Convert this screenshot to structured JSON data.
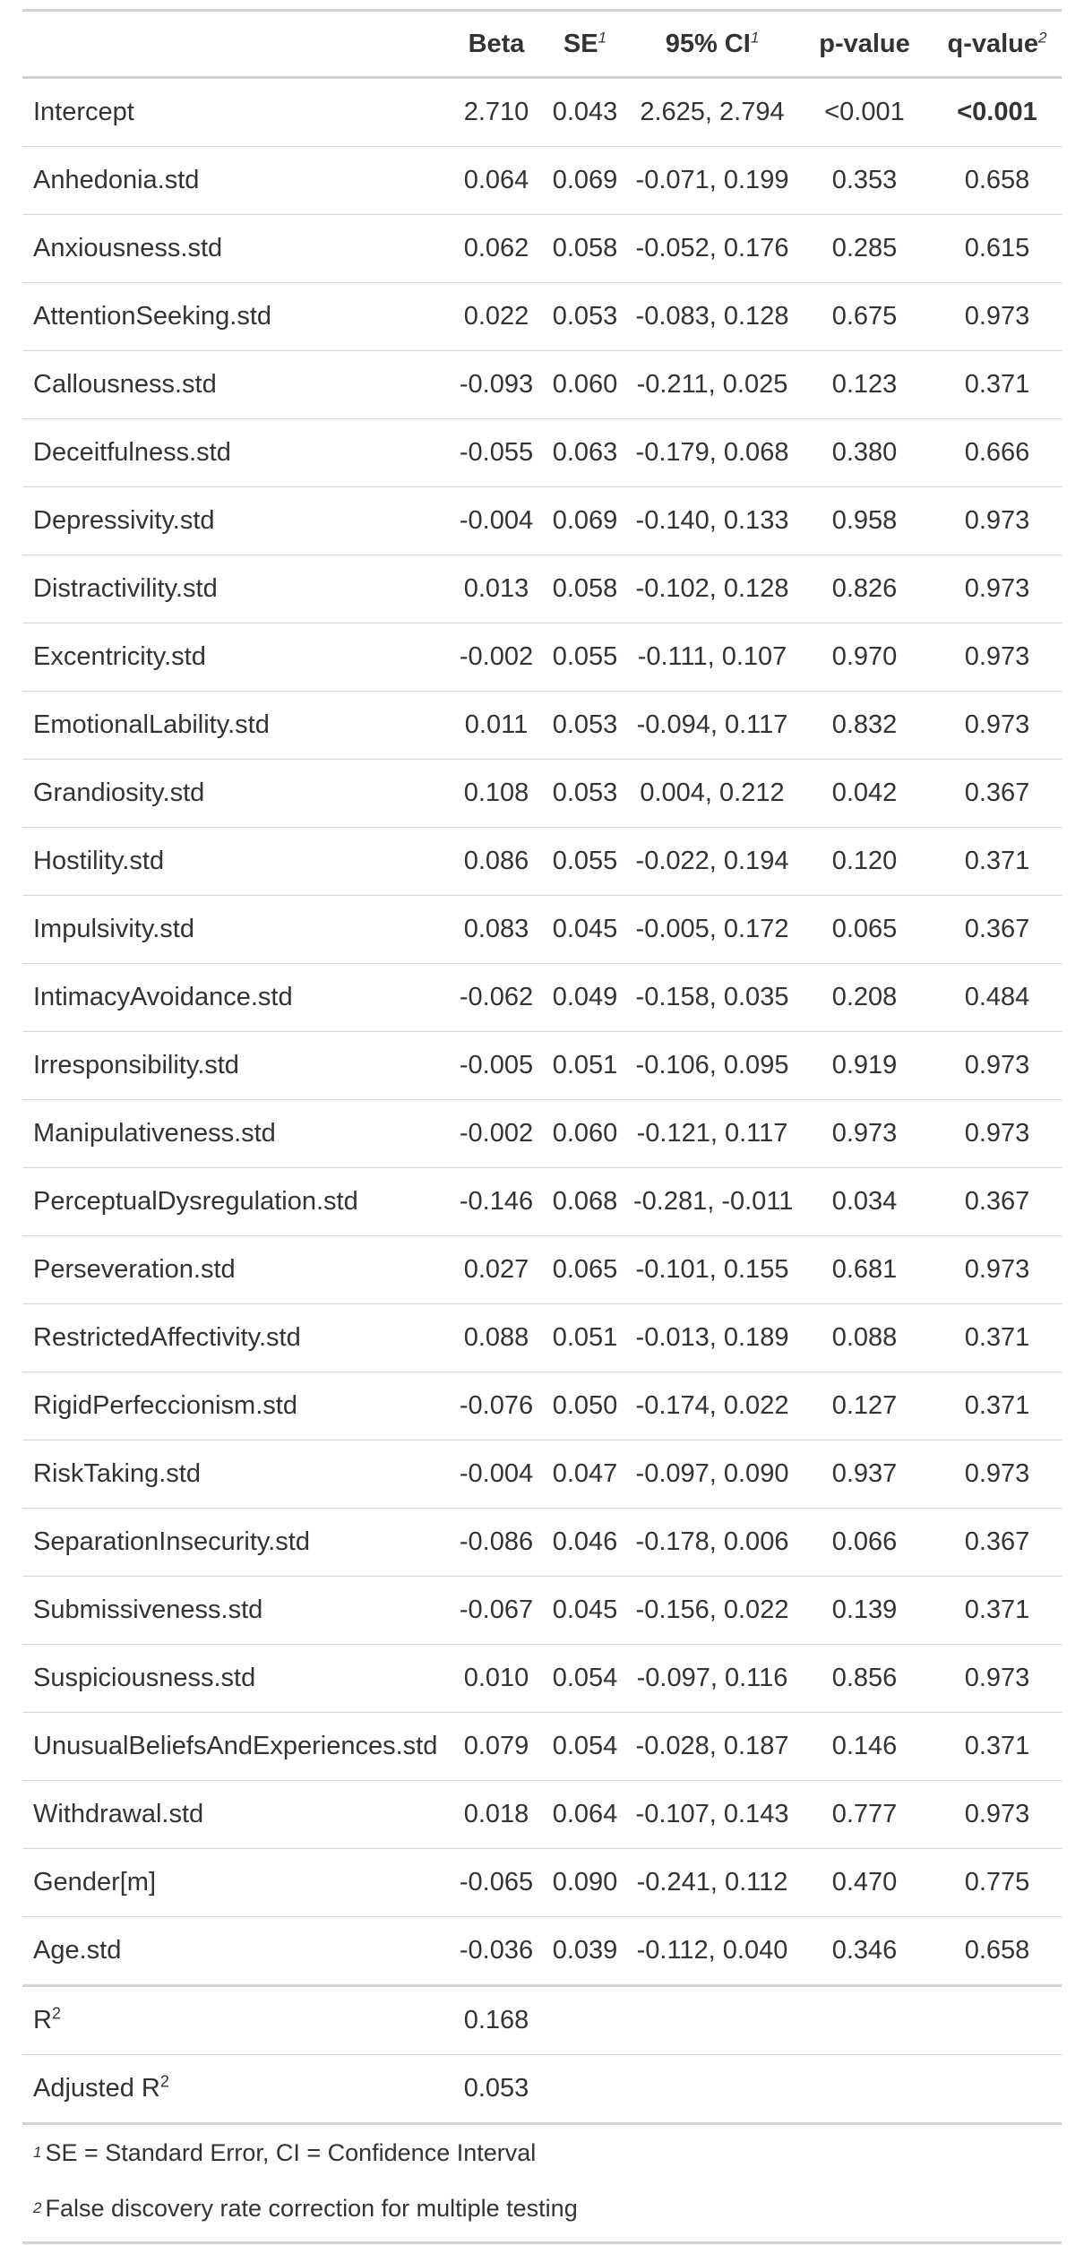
{
  "columns": {
    "label": "",
    "beta": "Beta",
    "se": "SE",
    "se_mark": "1",
    "ci": "95% CI",
    "ci_mark": "1",
    "p": "p-value",
    "q": "q-value",
    "q_mark": "2"
  },
  "rows": [
    {
      "label": "Intercept",
      "beta": "2.710",
      "se": "0.043",
      "ci": "2.625, 2.794",
      "p": "<0.001",
      "q": "<0.001",
      "q_bold": true
    },
    {
      "label": "Anhedonia.std",
      "beta": "0.064",
      "se": "0.069",
      "ci": "-0.071, 0.199",
      "p": "0.353",
      "q": "0.658"
    },
    {
      "label": "Anxiousness.std",
      "beta": "0.062",
      "se": "0.058",
      "ci": "-0.052, 0.176",
      "p": "0.285",
      "q": "0.615"
    },
    {
      "label": "AttentionSeeking.std",
      "beta": "0.022",
      "se": "0.053",
      "ci": "-0.083, 0.128",
      "p": "0.675",
      "q": "0.973"
    },
    {
      "label": "Callousness.std",
      "beta": "-0.093",
      "se": "0.060",
      "ci": "-0.211, 0.025",
      "p": "0.123",
      "q": "0.371"
    },
    {
      "label": "Deceitfulness.std",
      "beta": "-0.055",
      "se": "0.063",
      "ci": "-0.179, 0.068",
      "p": "0.380",
      "q": "0.666"
    },
    {
      "label": "Depressivity.std",
      "beta": "-0.004",
      "se": "0.069",
      "ci": "-0.140, 0.133",
      "p": "0.958",
      "q": "0.973"
    },
    {
      "label": "Distractivility.std",
      "beta": "0.013",
      "se": "0.058",
      "ci": "-0.102, 0.128",
      "p": "0.826",
      "q": "0.973"
    },
    {
      "label": "Excentricity.std",
      "beta": "-0.002",
      "se": "0.055",
      "ci": "-0.111, 0.107",
      "p": "0.970",
      "q": "0.973"
    },
    {
      "label": "EmotionalLability.std",
      "beta": "0.011",
      "se": "0.053",
      "ci": "-0.094, 0.117",
      "p": "0.832",
      "q": "0.973"
    },
    {
      "label": "Grandiosity.std",
      "beta": "0.108",
      "se": "0.053",
      "ci": "0.004, 0.212",
      "p": "0.042",
      "q": "0.367"
    },
    {
      "label": "Hostility.std",
      "beta": "0.086",
      "se": "0.055",
      "ci": "-0.022, 0.194",
      "p": "0.120",
      "q": "0.371"
    },
    {
      "label": "Impulsivity.std",
      "beta": "0.083",
      "se": "0.045",
      "ci": "-0.005, 0.172",
      "p": "0.065",
      "q": "0.367"
    },
    {
      "label": "IntimacyAvoidance.std",
      "beta": "-0.062",
      "se": "0.049",
      "ci": "-0.158, 0.035",
      "p": "0.208",
      "q": "0.484"
    },
    {
      "label": "Irresponsibility.std",
      "beta": "-0.005",
      "se": "0.051",
      "ci": "-0.106, 0.095",
      "p": "0.919",
      "q": "0.973"
    },
    {
      "label": "Manipulativeness.std",
      "beta": "-0.002",
      "se": "0.060",
      "ci": "-0.121, 0.117",
      "p": "0.973",
      "q": "0.973"
    },
    {
      "label": "PerceptualDysregulation.std",
      "beta": "-0.146",
      "se": "0.068",
      "ci": "-0.281, -0.011",
      "p": "0.034",
      "q": "0.367"
    },
    {
      "label": "Perseveration.std",
      "beta": "0.027",
      "se": "0.065",
      "ci": "-0.101, 0.155",
      "p": "0.681",
      "q": "0.973"
    },
    {
      "label": "RestrictedAffectivity.std",
      "beta": "0.088",
      "se": "0.051",
      "ci": "-0.013, 0.189",
      "p": "0.088",
      "q": "0.371"
    },
    {
      "label": "RigidPerfeccionism.std",
      "beta": "-0.076",
      "se": "0.050",
      "ci": "-0.174, 0.022",
      "p": "0.127",
      "q": "0.371"
    },
    {
      "label": "RiskTaking.std",
      "beta": "-0.004",
      "se": "0.047",
      "ci": "-0.097, 0.090",
      "p": "0.937",
      "q": "0.973"
    },
    {
      "label": "SeparationInsecurity.std",
      "beta": "-0.086",
      "se": "0.046",
      "ci": "-0.178, 0.006",
      "p": "0.066",
      "q": "0.367"
    },
    {
      "label": "Submissiveness.std",
      "beta": "-0.067",
      "se": "0.045",
      "ci": "-0.156, 0.022",
      "p": "0.139",
      "q": "0.371"
    },
    {
      "label": "Suspiciousness.std",
      "beta": "0.010",
      "se": "0.054",
      "ci": "-0.097, 0.116",
      "p": "0.856",
      "q": "0.973"
    },
    {
      "label": "UnusualBeliefsAndExperiences.std",
      "beta": "0.079",
      "se": "0.054",
      "ci": "-0.028, 0.187",
      "p": "0.146",
      "q": "0.371"
    },
    {
      "label": "Withdrawal.std",
      "beta": "0.018",
      "se": "0.064",
      "ci": "-0.107, 0.143",
      "p": "0.777",
      "q": "0.973"
    },
    {
      "label": "Gender[m]",
      "beta": "-0.065",
      "se": "0.090",
      "ci": "-0.241, 0.112",
      "p": "0.470",
      "q": "0.775"
    },
    {
      "label": "Age.std",
      "beta": "-0.036",
      "se": "0.039",
      "ci": "-0.112, 0.040",
      "p": "0.346",
      "q": "0.658"
    }
  ],
  "glance": [
    {
      "label": "R",
      "label_sup": "2",
      "value": "0.168"
    },
    {
      "label": "Adjusted R",
      "label_sup": "2",
      "value": "0.053"
    }
  ],
  "footnotes": [
    {
      "mark": "1",
      "text": "SE = Standard Error, CI = Confidence Interval"
    },
    {
      "mark": "2",
      "text": "False discovery rate correction for multiple testing"
    }
  ]
}
